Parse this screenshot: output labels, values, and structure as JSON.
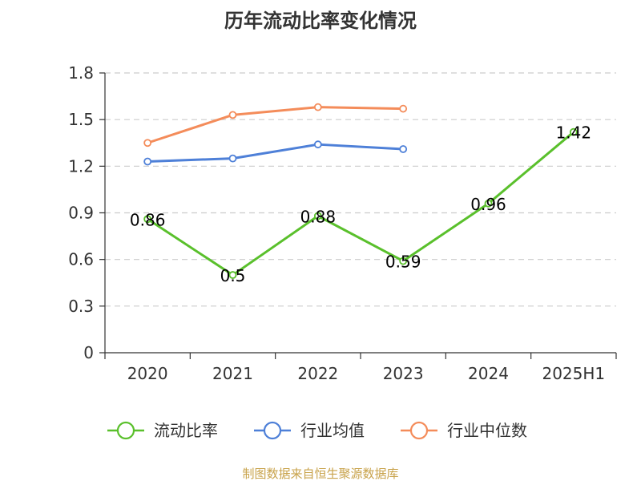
{
  "source_note": "制图数据来自恒生聚源数据库",
  "colors": {
    "current_ratio": "#5ac02c",
    "industry_mean": "#4e80d8",
    "industry_median": "#f48c5a",
    "axis": "#333333",
    "grid": "#cccccc",
    "source": "#c8a24a"
  },
  "chart_data": {
    "type": "line",
    "title": "历年流动比率变化情况",
    "xlabel": "",
    "ylabel": "",
    "categories": [
      "2020",
      "2021",
      "2022",
      "2023",
      "2024",
      "2025H1"
    ],
    "ylim": [
      0,
      1.8
    ],
    "yticks": [
      "0",
      "0.3",
      "0.6",
      "0.9",
      "1.2",
      "1.5",
      "1.8"
    ],
    "grid": true,
    "legend_position": "bottom",
    "series": [
      {
        "name": "流动比率",
        "values": [
          0.86,
          0.5,
          0.88,
          0.59,
          0.96,
          1.42
        ],
        "labels": [
          "0.86",
          "0.5",
          "0.88",
          "0.59",
          "0.96",
          "1.42"
        ],
        "show_labels": true
      },
      {
        "name": "行业均值",
        "values": [
          1.23,
          1.25,
          1.34,
          1.31,
          null,
          null
        ],
        "show_labels": false
      },
      {
        "name": "行业中位数",
        "values": [
          1.35,
          1.53,
          1.58,
          1.57,
          null,
          null
        ],
        "show_labels": false
      }
    ]
  }
}
